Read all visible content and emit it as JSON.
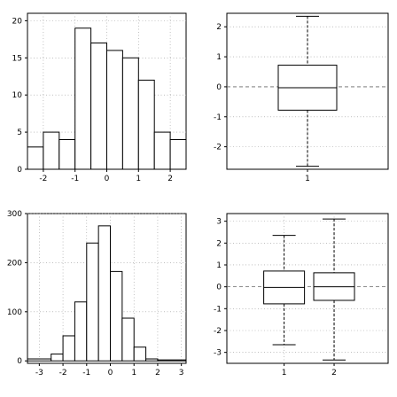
{
  "chart_data": [
    {
      "type": "histogram",
      "bins": [
        [
          -2.5,
          -2.0,
          3
        ],
        [
          -2.0,
          -1.5,
          5
        ],
        [
          -1.5,
          -1.0,
          4
        ],
        [
          -1.0,
          -0.5,
          19
        ],
        [
          -0.5,
          0.0,
          17
        ],
        [
          0.0,
          0.5,
          16
        ],
        [
          0.5,
          1.0,
          15
        ],
        [
          1.0,
          1.5,
          12
        ],
        [
          1.5,
          2.0,
          5
        ],
        [
          2.0,
          2.5,
          4
        ]
      ],
      "xlim": [
        -2.5,
        2.5
      ],
      "ylim": [
        0,
        21
      ],
      "xticks": [
        -2,
        -1,
        0,
        1,
        2
      ],
      "yticks": [
        0,
        5,
        10,
        15,
        20
      ],
      "grid": true
    },
    {
      "type": "boxplot",
      "ylim": [
        -2.75,
        2.45
      ],
      "yticks": [
        -2,
        -1,
        0,
        1,
        2
      ],
      "grid": true,
      "boxes": [
        {
          "label": "1",
          "min": -2.65,
          "q1": -0.78,
          "median": -0.03,
          "q3": 0.72,
          "max": 2.35
        }
      ]
    },
    {
      "type": "histogram",
      "bins": [
        [
          -3.5,
          -2.5,
          4
        ],
        [
          -2.5,
          -2.0,
          14
        ],
        [
          -2.0,
          -1.5,
          51
        ],
        [
          -1.5,
          -1.0,
          120
        ],
        [
          -1.0,
          -0.5,
          240
        ],
        [
          -0.5,
          0.0,
          275
        ],
        [
          0.0,
          0.5,
          182
        ],
        [
          0.5,
          1.0,
          87
        ],
        [
          1.0,
          1.5,
          28
        ],
        [
          1.5,
          2.0,
          4
        ],
        [
          2.0,
          3.2,
          2
        ]
      ],
      "xlim": [
        -3.5,
        3.2
      ],
      "ylim": [
        -5,
        300
      ],
      "xticks": [
        -3,
        -2,
        -1,
        0,
        1,
        2,
        3
      ],
      "yticks": [
        0,
        100,
        200,
        300
      ],
      "grid": true
    },
    {
      "type": "boxplot",
      "ylim": [
        -3.5,
        3.35
      ],
      "yticks": [
        -3,
        -2,
        -1,
        0,
        1,
        2,
        3
      ],
      "grid": true,
      "boxes": [
        {
          "label": "1",
          "min": -2.65,
          "q1": -0.78,
          "median": -0.03,
          "q3": 0.72,
          "max": 2.35
        },
        {
          "label": "2",
          "min": -3.35,
          "q1": -0.62,
          "median": 0.0,
          "q3": 0.64,
          "max": 3.1
        }
      ]
    }
  ]
}
